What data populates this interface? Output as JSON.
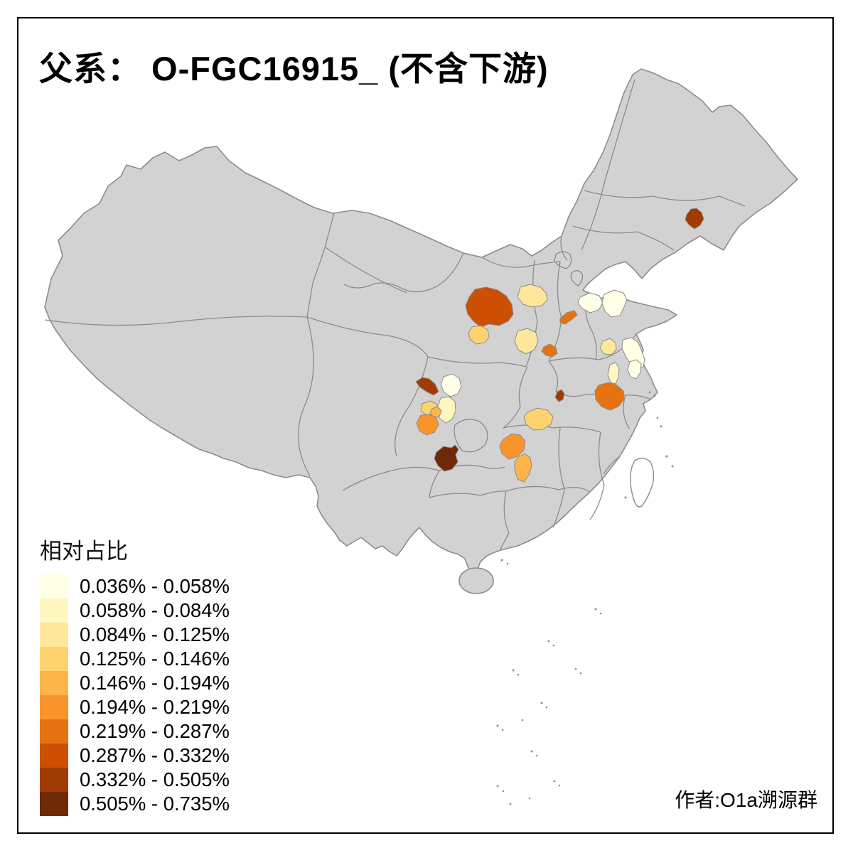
{
  "title": {
    "text": "父系： O-FGC16915_ (不含下游)"
  },
  "legend": {
    "title": "相对占比",
    "bins": [
      {
        "range": "0.036% - 0.058%",
        "color": "#FFFFE5"
      },
      {
        "range": "0.058% - 0.084%",
        "color": "#FFF7C0"
      },
      {
        "range": "0.084% - 0.125%",
        "color": "#FEE79B"
      },
      {
        "range": "0.125% - 0.146%",
        "color": "#FED36F"
      },
      {
        "range": "0.146% - 0.194%",
        "color": "#FDB44B"
      },
      {
        "range": "0.194% - 0.219%",
        "color": "#F9932C"
      },
      {
        "range": "0.219% - 0.287%",
        "color": "#E67311"
      },
      {
        "range": "0.287% - 0.332%",
        "color": "#CC4F02"
      },
      {
        "range": "0.332% - 0.505%",
        "color": "#A03B03"
      },
      {
        "range": "0.505% - 0.735%",
        "color": "#6E2906"
      }
    ]
  },
  "attribution": "作者:O1a溯源群",
  "map": {
    "colors": {
      "land": "#D2D2D2",
      "border": "#8C8C8C",
      "sea": "#FFFFFF",
      "frame": "#000000"
    },
    "regions": [
      {
        "id": "jilin-central",
        "bin": 9
      },
      {
        "id": "gansu-east",
        "bin": 8
      },
      {
        "id": "shaanxi-north",
        "bin": 3
      },
      {
        "id": "gansu-south",
        "bin": 4
      },
      {
        "id": "henan-west",
        "bin": 3
      },
      {
        "id": "henan-central",
        "bin": 7
      },
      {
        "id": "shanxi-east",
        "bin": 7
      },
      {
        "id": "shandong-nw-a",
        "bin": 1
      },
      {
        "id": "shandong-nw-b",
        "bin": 1
      },
      {
        "id": "shandong-sw",
        "bin": 3
      },
      {
        "id": "jiangsu-north",
        "bin": 1
      },
      {
        "id": "anhui-north-a",
        "bin": 2
      },
      {
        "id": "anhui-north-b",
        "bin": 1
      },
      {
        "id": "anhui-central",
        "bin": 7
      },
      {
        "id": "hubei-central",
        "bin": 9
      },
      {
        "id": "sichuan-north",
        "bin": 9
      },
      {
        "id": "sichuan-ne-a",
        "bin": 1
      },
      {
        "id": "sichuan-ne-b",
        "bin": 2
      },
      {
        "id": "chengdu-north",
        "bin": 4
      },
      {
        "id": "chengdu-east",
        "bin": 5
      },
      {
        "id": "chengdu-south",
        "bin": 6
      },
      {
        "id": "guizhou-north",
        "bin": 10
      },
      {
        "id": "hunan-north",
        "bin": 4
      },
      {
        "id": "hunan-west",
        "bin": 6
      },
      {
        "id": "hunan-central",
        "bin": 5
      }
    ]
  },
  "chart_data": {
    "type": "choropleth_map",
    "title": "父系： O-FGC16915_ (不含下游)",
    "legend_title": "相对占比",
    "legend_position": "bottom-left",
    "bin_ranges_percent": [
      [
        0.036,
        0.058
      ],
      [
        0.058,
        0.084
      ],
      [
        0.084,
        0.125
      ],
      [
        0.125,
        0.146
      ],
      [
        0.146,
        0.194
      ],
      [
        0.194,
        0.219
      ],
      [
        0.219,
        0.287
      ],
      [
        0.287,
        0.332
      ],
      [
        0.332,
        0.505
      ],
      [
        0.505,
        0.735
      ]
    ],
    "palette": [
      "#FFFFE5",
      "#FFF7C0",
      "#FEE79B",
      "#FED36F",
      "#FDB44B",
      "#F9932C",
      "#E67311",
      "#CC4F02",
      "#A03B03",
      "#6E2906"
    ],
    "annotation": "作者:O1a溯源群"
  }
}
